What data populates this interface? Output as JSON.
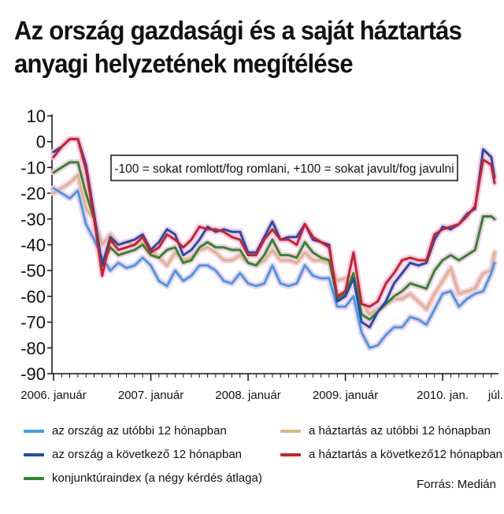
{
  "title": {
    "line1": "Az ország gazdasági és a saját háztartás",
    "line2": "anyagi helyzetének megítélése"
  },
  "source": "Forrás: Medián",
  "colors": {
    "orszag_utobbi": "#3aa0e6",
    "haztartas_utobbi": "#dcb781",
    "orszag_kovetkezo": "#1f4fa6",
    "haztartas_kovetkezo": "#c8232a",
    "konjunktura": "#2b8a2b",
    "halo": "#f6c6e6"
  },
  "chart_data": {
    "type": "line",
    "title": "Az ország gazdasági és a saját háztartás anyagi helyzetének megítélése",
    "annotation": "-100 = sokat romlott/fog romlani, +100 = sokat javult/fog javulni",
    "ylim": [
      -90,
      10
    ],
    "yticks": [
      "10",
      "0",
      "-10",
      "-20",
      "-30",
      "-40",
      "-50",
      "-60",
      "-70",
      "-80",
      "-90"
    ],
    "x_tick_labels": [
      {
        "label": "2006. január",
        "t": 0
      },
      {
        "label": "2007. január",
        "t": 12
      },
      {
        "label": "2008. január",
        "t": 24
      },
      {
        "label": "2009. január",
        "t": 36
      },
      {
        "label": "2010. jan.",
        "t": 48
      },
      {
        "label": "júl.",
        "t": 54
      }
    ],
    "x_range_months": [
      0,
      54.5
    ],
    "grid": false,
    "legend_position": "bottom",
    "series": [
      {
        "key": "orszag_utobbi",
        "name": "az ország az utóbbi 12 hónapban",
        "points": [
          [
            0,
            -18
          ],
          [
            1,
            -20
          ],
          [
            2,
            -22
          ],
          [
            3,
            -19
          ],
          [
            4,
            -32
          ],
          [
            5,
            -38
          ],
          [
            6,
            -45
          ],
          [
            7,
            -50
          ],
          [
            8,
            -47
          ],
          [
            9,
            -49
          ],
          [
            10,
            -48
          ],
          [
            11,
            -45
          ],
          [
            12,
            -48
          ],
          [
            13,
            -54
          ],
          [
            14,
            -56
          ],
          [
            15,
            -50
          ],
          [
            16,
            -54
          ],
          [
            17,
            -52
          ],
          [
            18,
            -48
          ],
          [
            19,
            -48
          ],
          [
            20,
            -50
          ],
          [
            21,
            -54
          ],
          [
            22,
            -55
          ],
          [
            23,
            -51
          ],
          [
            24,
            -55
          ],
          [
            25,
            -56
          ],
          [
            26,
            -55
          ],
          [
            27,
            -48
          ],
          [
            28,
            -55
          ],
          [
            29,
            -56
          ],
          [
            30,
            -55
          ],
          [
            31,
            -48
          ],
          [
            32,
            -52
          ],
          [
            33,
            -53
          ],
          [
            34,
            -53
          ],
          [
            35,
            -64
          ],
          [
            36,
            -64
          ],
          [
            37,
            -60
          ],
          [
            38,
            -74
          ],
          [
            39,
            -80
          ],
          [
            40,
            -79
          ],
          [
            41,
            -75
          ],
          [
            42,
            -72
          ],
          [
            43,
            -72
          ],
          [
            44,
            -68
          ],
          [
            45,
            -69
          ],
          [
            46,
            -71
          ],
          [
            47,
            -65
          ],
          [
            48,
            -59
          ],
          [
            49,
            -58
          ],
          [
            50,
            -64
          ],
          [
            51,
            -61
          ],
          [
            52,
            -59
          ],
          [
            53,
            -58
          ],
          [
            54,
            -51
          ],
          [
            54.4,
            -47
          ]
        ]
      },
      {
        "key": "haztartas_utobbi",
        "name": "a háztartás az utóbbi 12 hónapban",
        "points": [
          [
            0,
            -20
          ],
          [
            1,
            -18
          ],
          [
            2,
            -16
          ],
          [
            3,
            -13
          ],
          [
            4,
            -26
          ],
          [
            5,
            -30
          ],
          [
            6,
            -40
          ],
          [
            7,
            -36
          ],
          [
            8,
            -40
          ],
          [
            9,
            -39
          ],
          [
            10,
            -40
          ],
          [
            11,
            -39
          ],
          [
            12,
            -42
          ],
          [
            13,
            -45
          ],
          [
            14,
            -48
          ],
          [
            15,
            -43
          ],
          [
            16,
            -46
          ],
          [
            17,
            -45
          ],
          [
            18,
            -42
          ],
          [
            19,
            -41
          ],
          [
            20,
            -43
          ],
          [
            21,
            -46
          ],
          [
            22,
            -46
          ],
          [
            23,
            -44
          ],
          [
            24,
            -47
          ],
          [
            25,
            -48
          ],
          [
            26,
            -46
          ],
          [
            27,
            -42
          ],
          [
            28,
            -46
          ],
          [
            29,
            -46
          ],
          [
            30,
            -47
          ],
          [
            31,
            -43
          ],
          [
            32,
            -46
          ],
          [
            33,
            -46
          ],
          [
            34,
            -47
          ],
          [
            35,
            -54
          ],
          [
            36,
            -53
          ],
          [
            37,
            -52
          ],
          [
            38,
            -62
          ],
          [
            39,
            -67
          ],
          [
            40,
            -65
          ],
          [
            41,
            -63
          ],
          [
            42,
            -61
          ],
          [
            43,
            -61
          ],
          [
            44,
            -59
          ],
          [
            45,
            -62
          ],
          [
            46,
            -65
          ],
          [
            47,
            -59
          ],
          [
            48,
            -54
          ],
          [
            49,
            -49
          ],
          [
            50,
            -59
          ],
          [
            51,
            -58
          ],
          [
            52,
            -57
          ],
          [
            53,
            -51
          ],
          [
            54,
            -50
          ],
          [
            54.4,
            -43
          ]
        ]
      },
      {
        "key": "orszag_kovetkezo",
        "name": "az ország a következő 12 hónapban",
        "points": [
          [
            0,
            -4
          ],
          [
            1,
            -2
          ],
          [
            2,
            1
          ],
          [
            3,
            1
          ],
          [
            4,
            -9
          ],
          [
            5,
            -28
          ],
          [
            6,
            -48
          ],
          [
            7,
            -37
          ],
          [
            8,
            -40
          ],
          [
            9,
            -39
          ],
          [
            10,
            -38
          ],
          [
            11,
            -36
          ],
          [
            12,
            -42
          ],
          [
            13,
            -39
          ],
          [
            14,
            -34
          ],
          [
            15,
            -36
          ],
          [
            16,
            -44
          ],
          [
            17,
            -42
          ],
          [
            18,
            -38
          ],
          [
            19,
            -33
          ],
          [
            20,
            -35
          ],
          [
            21,
            -34
          ],
          [
            22,
            -35
          ],
          [
            23,
            -35
          ],
          [
            24,
            -43
          ],
          [
            25,
            -43
          ],
          [
            26,
            -37
          ],
          [
            27,
            -31
          ],
          [
            28,
            -38
          ],
          [
            29,
            -37
          ],
          [
            30,
            -37
          ],
          [
            31,
            -32
          ],
          [
            32,
            -38
          ],
          [
            33,
            -39
          ],
          [
            34,
            -40
          ],
          [
            35,
            -62
          ],
          [
            36,
            -60
          ],
          [
            37,
            -53
          ],
          [
            38,
            -70
          ],
          [
            39,
            -72
          ],
          [
            40,
            -66
          ],
          [
            41,
            -62
          ],
          [
            42,
            -55
          ],
          [
            43,
            -51
          ],
          [
            44,
            -47
          ],
          [
            45,
            -48
          ],
          [
            46,
            -47
          ],
          [
            47,
            -38
          ],
          [
            48,
            -33
          ],
          [
            49,
            -34
          ],
          [
            50,
            -32
          ],
          [
            51,
            -28
          ],
          [
            52,
            -26
          ],
          [
            53,
            -3
          ],
          [
            54,
            -6
          ],
          [
            54.4,
            -14
          ]
        ]
      },
      {
        "key": "haztartas_kovetkezo",
        "name": "a háztartás a következő12 hónapban",
        "points": [
          [
            0,
            -6
          ],
          [
            1,
            -2
          ],
          [
            2,
            1
          ],
          [
            3,
            1
          ],
          [
            4,
            -11
          ],
          [
            5,
            -30
          ],
          [
            6,
            -52
          ],
          [
            7,
            -38
          ],
          [
            8,
            -42
          ],
          [
            9,
            -41
          ],
          [
            10,
            -40
          ],
          [
            11,
            -37
          ],
          [
            12,
            -43
          ],
          [
            13,
            -41
          ],
          [
            14,
            -36
          ],
          [
            15,
            -38
          ],
          [
            16,
            -41
          ],
          [
            17,
            -38
          ],
          [
            18,
            -33
          ],
          [
            19,
            -34
          ],
          [
            20,
            -34
          ],
          [
            21,
            -35
          ],
          [
            22,
            -37
          ],
          [
            23,
            -38
          ],
          [
            24,
            -44
          ],
          [
            25,
            -44
          ],
          [
            26,
            -38
          ],
          [
            27,
            -34
          ],
          [
            28,
            -38
          ],
          [
            29,
            -38
          ],
          [
            30,
            -40
          ],
          [
            31,
            -32
          ],
          [
            32,
            -37
          ],
          [
            33,
            -39
          ],
          [
            34,
            -41
          ],
          [
            35,
            -60
          ],
          [
            36,
            -58
          ],
          [
            37,
            -43
          ],
          [
            38,
            -63
          ],
          [
            39,
            -64
          ],
          [
            40,
            -62
          ],
          [
            41,
            -55
          ],
          [
            42,
            -51
          ],
          [
            43,
            -46
          ],
          [
            44,
            -45
          ],
          [
            45,
            -46
          ],
          [
            46,
            -46
          ],
          [
            47,
            -36
          ],
          [
            48,
            -34
          ],
          [
            49,
            -33
          ],
          [
            50,
            -32
          ],
          [
            51,
            -29
          ],
          [
            52,
            -25
          ],
          [
            53,
            -7
          ],
          [
            54,
            -9
          ],
          [
            54.4,
            -16
          ]
        ]
      },
      {
        "key": "konjunktura",
        "name": "konjunktúraindex (a négy kérdés átlaga)",
        "points": [
          [
            0,
            -12
          ],
          [
            1,
            -10
          ],
          [
            2,
            -8
          ],
          [
            3,
            -8
          ],
          [
            4,
            -20
          ],
          [
            5,
            -30
          ],
          [
            6,
            -48
          ],
          [
            7,
            -41
          ],
          [
            8,
            -44
          ],
          [
            9,
            -43
          ],
          [
            10,
            -42
          ],
          [
            11,
            -40
          ],
          [
            12,
            -44
          ],
          [
            13,
            -45
          ],
          [
            14,
            -42
          ],
          [
            15,
            -41
          ],
          [
            16,
            -47
          ],
          [
            17,
            -46
          ],
          [
            18,
            -41
          ],
          [
            19,
            -39
          ],
          [
            20,
            -41
          ],
          [
            21,
            -41
          ],
          [
            22,
            -42
          ],
          [
            23,
            -42
          ],
          [
            24,
            -47
          ],
          [
            25,
            -48
          ],
          [
            26,
            -44
          ],
          [
            27,
            -38
          ],
          [
            28,
            -44
          ],
          [
            29,
            -44
          ],
          [
            30,
            -45
          ],
          [
            31,
            -39
          ],
          [
            32,
            -43
          ],
          [
            33,
            -45
          ],
          [
            34,
            -46
          ],
          [
            35,
            -61
          ],
          [
            36,
            -59
          ],
          [
            37,
            -51
          ],
          [
            38,
            -67
          ],
          [
            39,
            -69
          ],
          [
            40,
            -66
          ],
          [
            41,
            -63
          ],
          [
            42,
            -60
          ],
          [
            43,
            -58
          ],
          [
            44,
            -55
          ],
          [
            45,
            -56
          ],
          [
            46,
            -57
          ],
          [
            47,
            -50
          ],
          [
            48,
            -46
          ],
          [
            49,
            -44
          ],
          [
            50,
            -46
          ],
          [
            51,
            -44
          ],
          [
            52,
            -42
          ],
          [
            53,
            -29
          ],
          [
            54,
            -29
          ],
          [
            54.4,
            -30
          ]
        ]
      }
    ]
  }
}
